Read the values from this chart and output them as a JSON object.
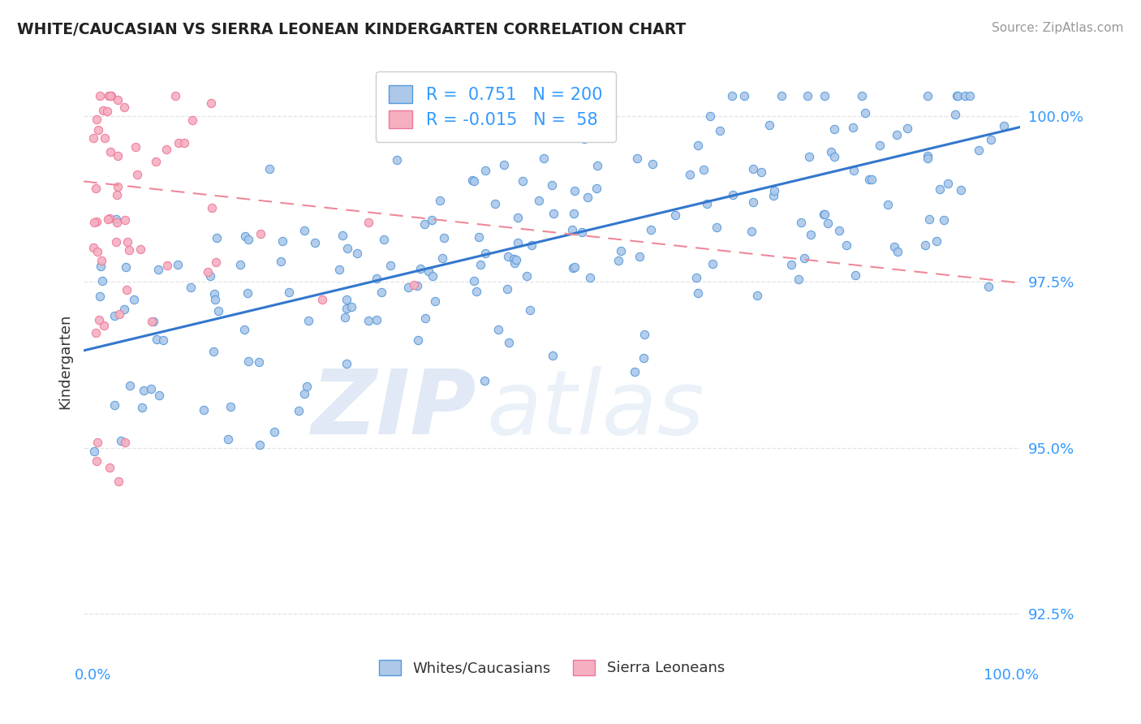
{
  "title": "WHITE/CAUCASIAN VS SIERRA LEONEAN KINDERGARTEN CORRELATION CHART",
  "source": "Source: ZipAtlas.com",
  "ylabel": "Kindergarten",
  "watermark_zip": "ZIP",
  "watermark_atlas": "atlas",
  "blue_R": 0.751,
  "blue_N": 200,
  "pink_R": -0.015,
  "pink_N": 58,
  "blue_color": "#adc8e8",
  "pink_color": "#f5afc0",
  "blue_edge_color": "#5599dd",
  "pink_edge_color": "#ee7799",
  "blue_line_color": "#3377cc",
  "pink_line_color": "#ee8899",
  "legend_label_blue": "Whites/Caucasians",
  "legend_label_pink": "Sierra Leoneans",
  "y_ticks": [
    92.5,
    95.0,
    97.5,
    100.0
  ],
  "y_min": 91.8,
  "y_max": 100.8,
  "x_min": -1,
  "x_max": 101,
  "blue_trend_y0": 96.5,
  "blue_trend_y1": 99.8,
  "pink_trend_y0": 99.0,
  "pink_trend_y1": 97.5,
  "background_color": "#ffffff",
  "grid_color": "#dddddd",
  "title_color": "#222222",
  "axis_label_color": "#333333",
  "tick_label_color": "#3399ff",
  "source_color": "#999999"
}
